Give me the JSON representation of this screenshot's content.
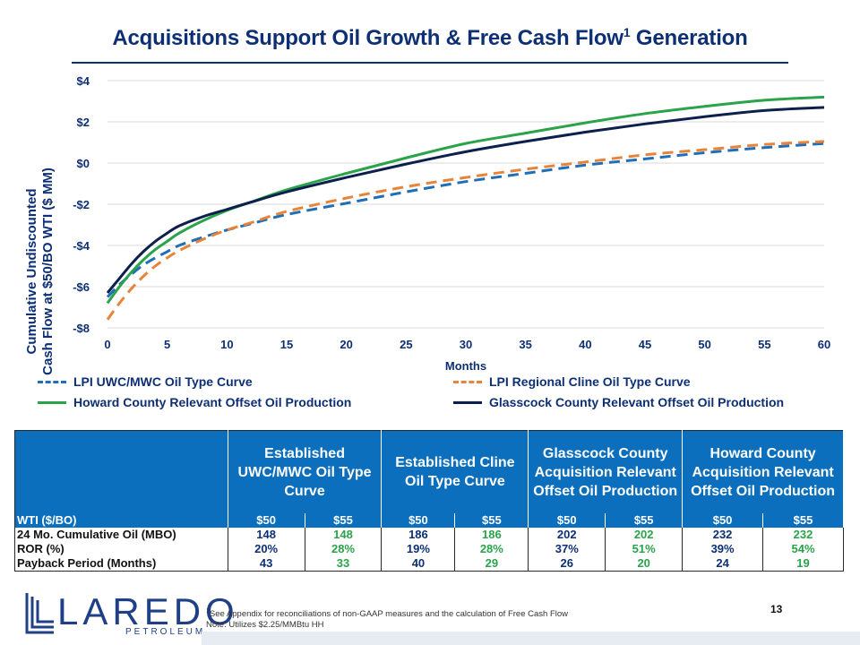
{
  "title": {
    "text": "Acquisitions Support Oil Growth & Free Cash Flow",
    "sup": "1",
    "suffix": " Generation"
  },
  "chart_data": {
    "type": "line",
    "ylabel_line1": "Cumulative Undiscounted",
    "ylabel_line2": "Cash Flow at $50/BO WTI ($ MM)",
    "xlabel": "Months",
    "xlim": [
      0,
      60
    ],
    "ylim": [
      -8,
      4
    ],
    "x_ticks": [
      0,
      5,
      10,
      15,
      20,
      25,
      30,
      35,
      40,
      45,
      50,
      55,
      60
    ],
    "y_ticks": [
      -8,
      -6,
      -4,
      -2,
      0,
      2,
      4
    ],
    "y_tick_labels": [
      "-$8",
      "-$6",
      "-$4",
      "-$2",
      "$0",
      "$2",
      "$4"
    ],
    "x": [
      0,
      1,
      2,
      3,
      4,
      5,
      6,
      8,
      10,
      12,
      15,
      20,
      25,
      30,
      35,
      40,
      45,
      50,
      55,
      60
    ],
    "series": [
      {
        "name": "LPI UWC/MWC Oil Type Curve",
        "color": "#1f6fb8",
        "dash": true,
        "values": [
          -6.5,
          -5.9,
          -5.4,
          -4.95,
          -4.6,
          -4.3,
          -4.0,
          -3.6,
          -3.25,
          -2.95,
          -2.5,
          -1.95,
          -1.4,
          -0.9,
          -0.5,
          -0.1,
          0.2,
          0.5,
          0.75,
          0.95
        ]
      },
      {
        "name": "LPI Regional Cline Oil Type Curve",
        "color": "#e8843a",
        "dash": true,
        "values": [
          -7.6,
          -6.8,
          -6.1,
          -5.5,
          -5.0,
          -4.6,
          -4.25,
          -3.7,
          -3.25,
          -2.9,
          -2.35,
          -1.7,
          -1.15,
          -0.7,
          -0.3,
          0.05,
          0.4,
          0.65,
          0.9,
          1.05
        ]
      },
      {
        "name": "Howard County Relevant Offset Oil Production",
        "color": "#2aa34a",
        "dash": false,
        "values": [
          -6.8,
          -6.0,
          -5.3,
          -4.7,
          -4.2,
          -3.8,
          -3.4,
          -2.8,
          -2.3,
          -1.9,
          -1.3,
          -0.5,
          0.25,
          0.95,
          1.45,
          1.95,
          2.4,
          2.75,
          3.05,
          3.2
        ]
      },
      {
        "name": "Glasscock County Relevant Offset Oil Production",
        "color": "#0c1f4d",
        "dash": false,
        "values": [
          -6.3,
          -5.6,
          -4.9,
          -4.3,
          -3.8,
          -3.4,
          -3.05,
          -2.6,
          -2.25,
          -1.9,
          -1.4,
          -0.7,
          -0.05,
          0.55,
          1.05,
          1.5,
          1.9,
          2.25,
          2.55,
          2.7
        ]
      }
    ]
  },
  "table": {
    "headers": [
      "",
      "Established UWC/MWC Oil Type Curve",
      "Established Cline Oil Type Curve",
      "Glasscock County Acquisition Relevant Offset Oil Production",
      "Howard County Acquisition Relevant Offset Oil Production"
    ],
    "wti": [
      "WTI ($/BO)",
      "$50",
      "$55",
      "$50",
      "$55",
      "$50",
      "$55",
      "$50",
      "$55"
    ],
    "rows": [
      {
        "label": "24 Mo. Cumulative Oil (MBO)",
        "values": [
          "148",
          "148",
          "186",
          "186",
          "202",
          "202",
          "232",
          "232"
        ]
      },
      {
        "label": "ROR (%)",
        "values": [
          "20%",
          "28%",
          "19%",
          "28%",
          "37%",
          "51%",
          "39%",
          "54%"
        ]
      },
      {
        "label": "Payback Period (Months)",
        "values": [
          "43",
          "33",
          "40",
          "29",
          "26",
          "20",
          "24",
          "19"
        ]
      }
    ]
  },
  "logo": {
    "word": "LAREDO",
    "sub": "PETROLEUM"
  },
  "footnote": {
    "sup": "1",
    "line1": "See Appendix for reconciliations of non-GAAP measures and the calculation of Free Cash Flow",
    "line2": "Note: Utilizes $2.25/MMBtu HH"
  },
  "page_number": "13"
}
